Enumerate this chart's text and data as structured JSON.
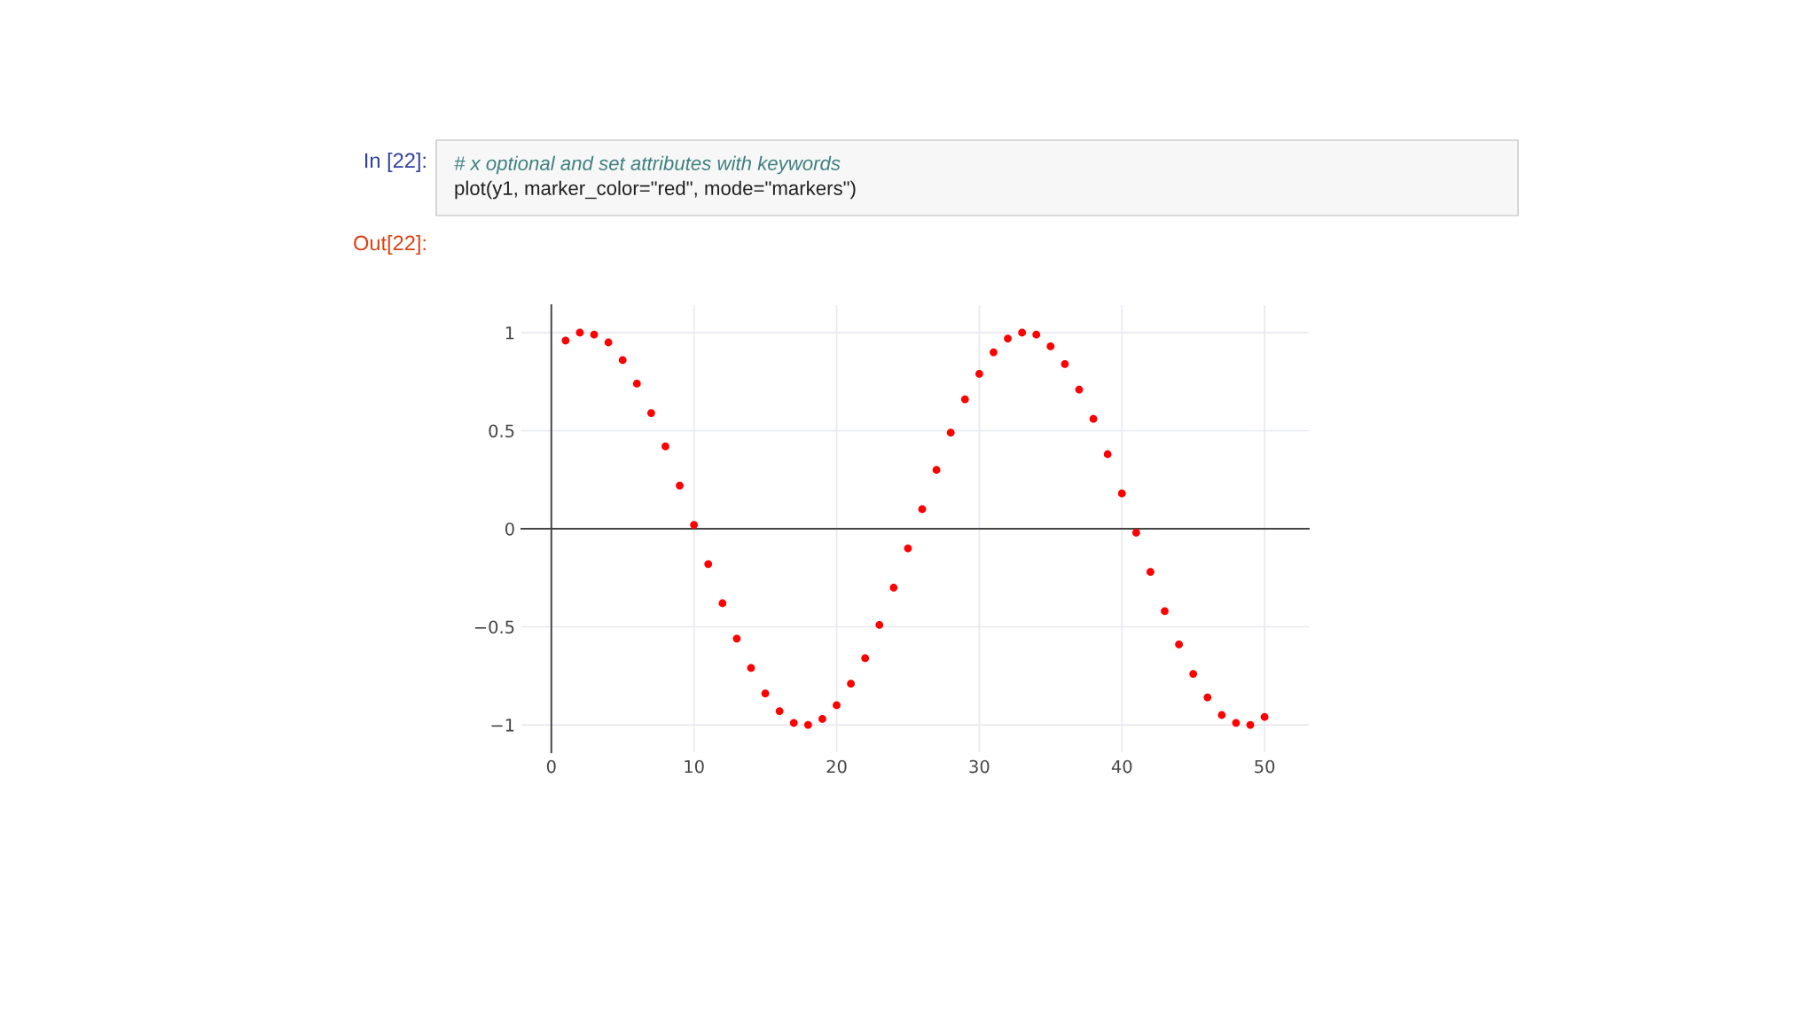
{
  "chart_data": {
    "type": "scatter",
    "x": [
      1,
      2,
      3,
      4,
      5,
      6,
      7,
      8,
      9,
      10,
      11,
      12,
      13,
      14,
      15,
      16,
      17,
      18,
      19,
      20,
      21,
      22,
      23,
      24,
      25,
      26,
      27,
      28,
      29,
      30,
      31,
      32,
      33,
      34,
      35,
      36,
      37,
      38,
      39,
      40,
      41,
      42,
      43,
      44,
      45,
      46,
      47,
      48,
      49,
      50
    ],
    "values": [
      0.96,
      1.0,
      0.99,
      0.95,
      0.86,
      0.74,
      0.59,
      0.42,
      0.22,
      0.02,
      -0.18,
      -0.38,
      -0.56,
      -0.71,
      -0.84,
      -0.93,
      -0.99,
      -1.0,
      -0.97,
      -0.9,
      -0.79,
      -0.66,
      -0.49,
      -0.3,
      -0.1,
      0.1,
      0.3,
      0.49,
      0.66,
      0.79,
      0.9,
      0.97,
      1.0,
      0.99,
      0.93,
      0.84,
      0.71,
      0.56,
      0.38,
      0.18,
      -0.02,
      -0.22,
      -0.42,
      -0.59,
      -0.74,
      -0.86,
      -0.95,
      -0.99,
      -1.0,
      -0.96
    ],
    "color": "#ff0000",
    "marker": "circle",
    "xlim": [
      -2.1,
      53.1
    ],
    "ylim": [
      -1.14,
      1.14
    ],
    "xticks": [
      0,
      10,
      20,
      30,
      40,
      50
    ],
    "yticks": [
      {
        "value": -1,
        "label": "−1"
      },
      {
        "value": -0.5,
        "label": "−0.5"
      },
      0,
      0.5,
      1
    ],
    "grid": true,
    "annotations": [
      "In [22]:",
      "# x optional and set attributes with keywords",
      "plot(y1, marker_color=\"red\", mode=\"markers\")",
      "Out[22]:"
    ]
  }
}
